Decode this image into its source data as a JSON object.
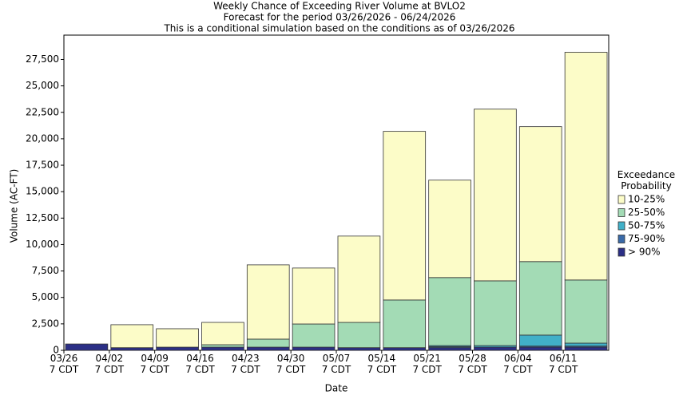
{
  "chart_data": {
    "type": "stacked_bar",
    "title": "Weekly Chance of Exceeding River Volume at BVLO2",
    "subtitle": "Forecast for the period 03/26/2026 - 06/24/2026",
    "note": "This is a conditional simulation based on the conditions as of 03/26/2026",
    "xlabel": "Date",
    "ylabel": "Volume (AC-FT)",
    "legend_title": "Exceedance\nProbability",
    "categories": [
      "03/26\n7 CDT",
      "04/02\n7 CDT",
      "04/09\n7 CDT",
      "04/16\n7 CDT",
      "04/23\n7 CDT",
      "04/30\n7 CDT",
      "05/07\n7 CDT",
      "05/14\n7 CDT",
      "05/21\n7 CDT",
      "05/28\n7 CDT",
      "06/04\n7 CDT",
      "06/11\n7 CDT"
    ],
    "series": [
      {
        "name": "> 90%",
        "color": "#2b2f86",
        "values": [
          600,
          250,
          300,
          300,
          300,
          300,
          250,
          250,
          250,
          300,
          300,
          300
        ]
      },
      {
        "name": "75-90%",
        "color": "#3a6aa8",
        "values": [
          0,
          0,
          0,
          0,
          0,
          0,
          0,
          0,
          100,
          0,
          100,
          100
        ]
      },
      {
        "name": "50-75%",
        "color": "#41b0c8",
        "values": [
          0,
          0,
          0,
          0,
          0,
          0,
          0,
          0,
          100,
          150,
          1040,
          280
        ]
      },
      {
        "name": "25-50%",
        "color": "#a3dbb5",
        "values": [
          0,
          0,
          0,
          230,
          760,
          2190,
          2390,
          4510,
          6430,
          6120,
          6950,
          5970
        ]
      },
      {
        "name": "10-25%",
        "color": "#fcfcc8",
        "values": [
          0,
          2170,
          1740,
          2110,
          7020,
          5290,
          8160,
          15940,
          9210,
          16230,
          12760,
          21530
        ]
      }
    ],
    "ylim": [
      0,
      29800
    ],
    "yticks": [
      0,
      {
        "value": 2500,
        "label": "2,500"
      },
      {
        "value": 5000,
        "label": "5,000"
      },
      {
        "value": 7500,
        "label": "7,500"
      },
      {
        "value": 10000,
        "label": "10,000"
      },
      {
        "value": 12500,
        "label": "12,500"
      },
      {
        "value": 15000,
        "label": "15,000"
      },
      {
        "value": 17500,
        "label": "17,500"
      },
      {
        "value": 20000,
        "label": "20,000"
      },
      {
        "value": 22500,
        "label": "22,500"
      },
      {
        "value": 25000,
        "label": "25,000"
      },
      {
        "value": 27500,
        "label": "27,500"
      }
    ],
    "legend": "right"
  }
}
